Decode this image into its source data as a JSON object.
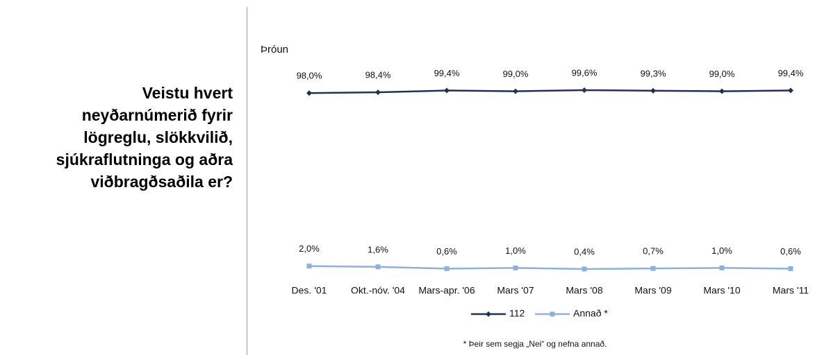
{
  "question": [
    "Veistu hvert",
    "neyðarnúmerið fyrir",
    "lögreglu, slökkvilið,",
    "sjúkraflutninga og aðra",
    "viðbragðsaðila er?"
  ],
  "chart_data": {
    "type": "line",
    "title": "Þróun",
    "categories": [
      "Des. '01",
      "Okt.-nóv. '04",
      "Mars-apr. '06",
      "Mars '07",
      "Mars '08",
      "Mars '09",
      "Mars '10",
      "Mars '11"
    ],
    "series": [
      {
        "name": "112",
        "color": "#1f3350",
        "marker": "diamond",
        "values": [
          98.0,
          98.4,
          99.4,
          99.0,
          99.6,
          99.3,
          99.0,
          99.4
        ],
        "value_labels": [
          "98,0%",
          "98,4%",
          "99,4%",
          "99,0%",
          "99,6%",
          "99,3%",
          "99,0%",
          "99,4%"
        ]
      },
      {
        "name": "Annað *",
        "color": "#8fb0d8",
        "marker": "square",
        "values": [
          2.0,
          1.6,
          0.6,
          1.0,
          0.4,
          0.7,
          1.0,
          0.6
        ],
        "value_labels": [
          "2,0%",
          "1,6%",
          "0,6%",
          "1,0%",
          "0,4%",
          "0,7%",
          "1,0%",
          "0,6%"
        ]
      }
    ],
    "legend": "bottom",
    "footnote": "* Þeir sem segja „Nei“ og nefna annað."
  }
}
